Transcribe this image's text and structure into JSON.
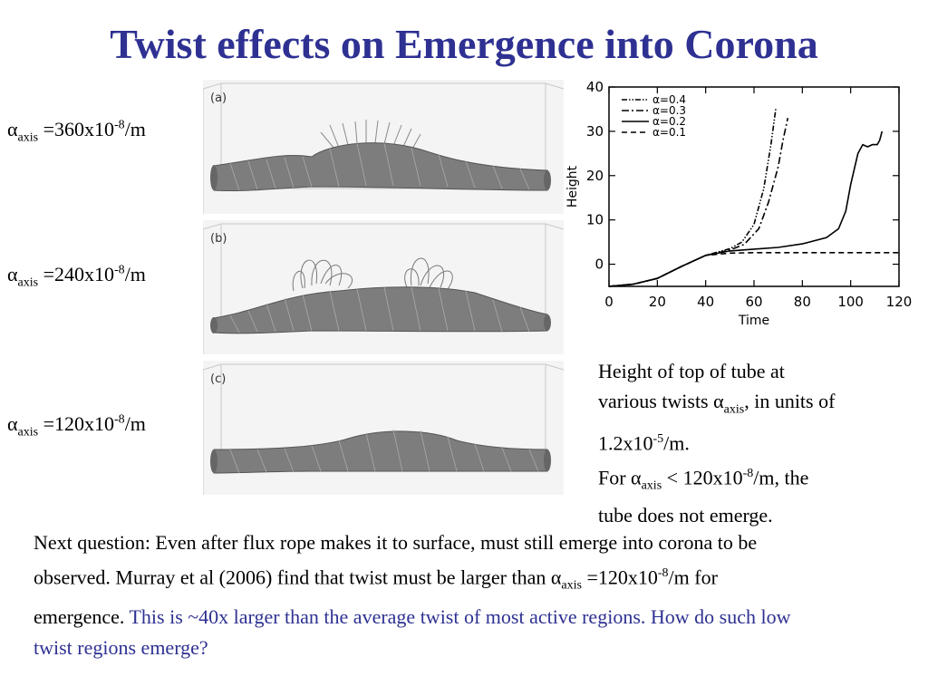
{
  "title": "Twist effects on Emergence into Corona",
  "labels": [
    {
      "alpha": "α",
      "sub": "axis",
      "pre": " =360x10",
      "exp": "-8",
      "post": "/m"
    },
    {
      "alpha": "α",
      "sub": "axis",
      "pre": " =240x10",
      "exp": "-8",
      "post": "/m"
    },
    {
      "alpha": "α",
      "sub": "axis",
      "pre": " =120x10",
      "exp": "-8",
      "post": "/m"
    }
  ],
  "panels": [
    "(a)",
    "(b)",
    "(c)"
  ],
  "chart_data": {
    "type": "line",
    "xlabel": "Time",
    "ylabel": "Height",
    "xlim": [
      0,
      120
    ],
    "ylim": [
      -5,
      40
    ],
    "xticks": [
      "0",
      "20",
      "40",
      "60",
      "80",
      "100",
      "120"
    ],
    "yticks": [
      "0",
      "10",
      "20",
      "30",
      "40"
    ],
    "legend_position": "top-left",
    "series": [
      {
        "name": "α=0.4",
        "style": "dash-dot-dot",
        "x": [
          0,
          10,
          20,
          30,
          40,
          50,
          55,
          60,
          64,
          67,
          69
        ],
        "y": [
          -5,
          -4.5,
          -3.2,
          -0.5,
          2,
          3.5,
          5,
          9,
          17,
          27,
          35
        ]
      },
      {
        "name": "α=0.3",
        "style": "dash-dot",
        "x": [
          0,
          10,
          20,
          30,
          40,
          50,
          56,
          62,
          66,
          70,
          72,
          74
        ],
        "y": [
          -5,
          -4.5,
          -3.2,
          -0.5,
          2,
          3.2,
          4.5,
          8,
          14,
          22,
          28,
          33
        ]
      },
      {
        "name": "α=0.2",
        "style": "solid",
        "x": [
          0,
          10,
          20,
          30,
          40,
          50,
          60,
          70,
          80,
          90,
          95,
          98,
          100,
          103,
          105,
          107,
          109,
          111,
          112,
          113
        ],
        "y": [
          -5,
          -4.5,
          -3.2,
          -0.5,
          2,
          3,
          3.4,
          3.8,
          4.6,
          6,
          8,
          12,
          18,
          25,
          27,
          26.5,
          27,
          27,
          28,
          30
        ]
      },
      {
        "name": "α=0.1",
        "style": "dashed",
        "x": [
          0,
          10,
          20,
          30,
          40,
          50,
          60,
          80,
          100,
          120
        ],
        "y": [
          -5,
          -4.5,
          -3.2,
          -0.5,
          2,
          2.5,
          2.6,
          2.6,
          2.6,
          2.6
        ]
      }
    ]
  },
  "caption": {
    "line1": "Height of top of tube at",
    "line2_pre": "various twists α",
    "line2_sub": "axis",
    "line2_post": ", in units of",
    "line3_pre": "1.2x10",
    "line3_exp": "-5",
    "line3_post": "/m.",
    "line4_pre": "For α",
    "line4_sub": "axis",
    "line4_mid": " < 120x10",
    "line4_exp": "-8",
    "line4_post": "/m, the",
    "line5": "tube does not emerge."
  },
  "bottom_text": {
    "part1": "Next question: Even after flux rope makes it to surface, must still emerge into corona to be observed. Murray et al (2006) find that twist must be larger than α",
    "sub": "axis",
    "part2": " =120x10",
    "exp": "-8",
    "part3": "/m for emergence. ",
    "blue": "This is ~40x larger than the average twist of most active regions. How do such low twist regions emerge?"
  }
}
